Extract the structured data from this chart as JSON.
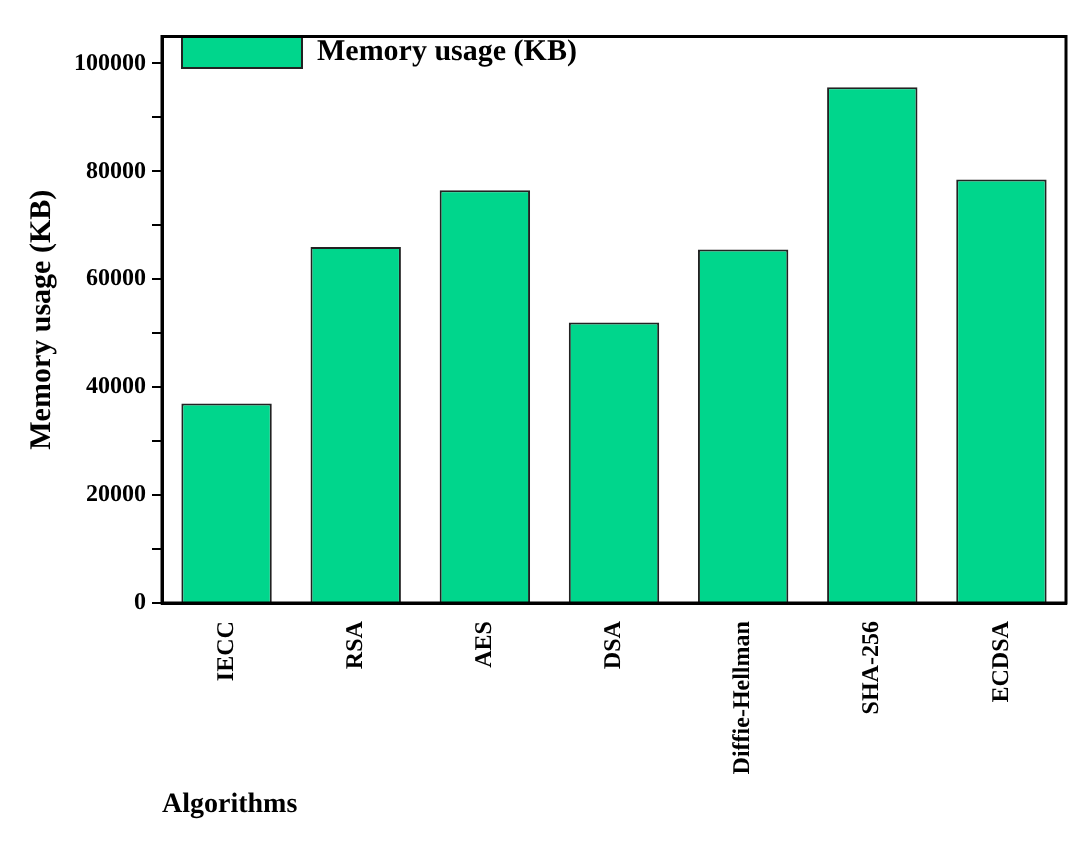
{
  "chart_data": {
    "type": "bar",
    "xlabel": "Algorithms",
    "ylabel": "Memory usage (KB)",
    "categories": [
      "IECC",
      "RSA",
      "AES",
      "DSA",
      "Diffie-Hellman",
      "SHA-256",
      "ECDSA"
    ],
    "series": [
      {
        "name": "Memory usage (KB)",
        "color": "#00d68c",
        "values": [
          37000,
          66000,
          76500,
          52000,
          65500,
          95600,
          78500
        ]
      }
    ],
    "ylim": [
      0,
      105000
    ],
    "yticks": [
      0,
      {
        "value": 10000,
        "label": null
      },
      20000,
      {
        "value": 30000,
        "label": null
      },
      40000,
      {
        "value": 50000,
        "label": null
      },
      60000,
      {
        "value": 70000,
        "label": null
      },
      80000,
      {
        "value": 90000,
        "label": null
      },
      100000
    ],
    "grid": false,
    "legend": "top left"
  }
}
